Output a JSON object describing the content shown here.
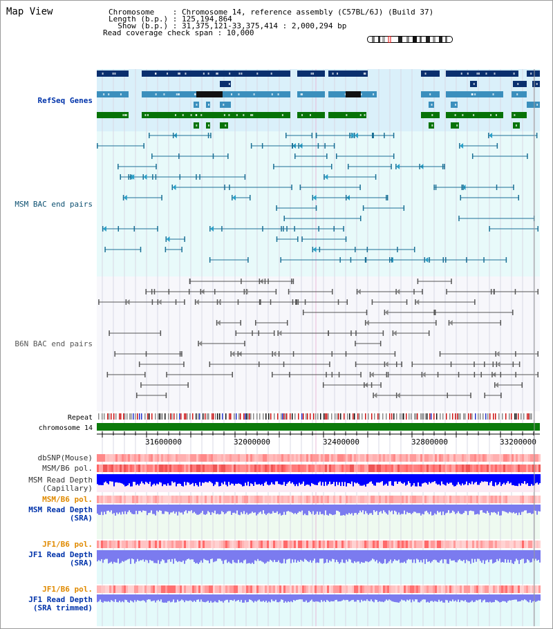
{
  "map_view": {
    "title": "Map View",
    "header": {
      "line1": "Chromosome    : Chromosome 14, reference assembly (C57BL/6J) (Build 37)",
      "line2": "Length (b.p.) : 125,194,864",
      "line3": "  Show (b.p.) : 31,375,121-33,375,414 : 2,000,294 bp",
      "line4": "Read coverage check span : 10,000"
    },
    "tracks": {
      "refseq": "RefSeq Genes",
      "msm_bac": "MSM BAC end pairs",
      "b6n_bac": "B6N BAC end pairs",
      "repeat": "Repeat",
      "chromosome": "chromosome 14",
      "dbsnp": "dbSNP(Mouse)",
      "msm_b6_pol_1": "MSM/B6 pol.",
      "msm_read_depth_cap_1": "MSM Read Depth",
      "msm_read_depth_cap_2": "(Capillary)",
      "msm_b6_pol_2": "MSM/B6 pol.",
      "msm_read_depth_sra_1": "MSM Read Depth",
      "msm_read_depth_sra_2": "(SRA)",
      "jf1_b6_pol_1": "JF1/B6 pol.",
      "jf1_read_depth_sra_1": "JF1 Read Depth",
      "jf1_read_depth_sra_2": "(SRA)",
      "jf1_b6_pol_2": "JF1/B6 pol.",
      "jf1_read_depth_trim_1": "JF1 Read Depth",
      "jf1_read_depth_trim_2": "(SRA trimmed)"
    },
    "axis": {
      "tick_labels": [
        "31600000",
        "32000000",
        "32400000",
        "32800000",
        "33200000"
      ]
    },
    "colors": {
      "refseq_dark": "#0a2f6e",
      "refseq_mid": "#3b8fbd",
      "refseq_green": "#077307",
      "msm_bac": "#1a6f95",
      "b6n_bac": "#555555",
      "chromosome": "#0b7a0b",
      "depth_capillary": "#0000ff",
      "depth_sra": "#7b7bef",
      "label_blue": "#0033aa",
      "label_orange": "#e08a00"
    }
  }
}
